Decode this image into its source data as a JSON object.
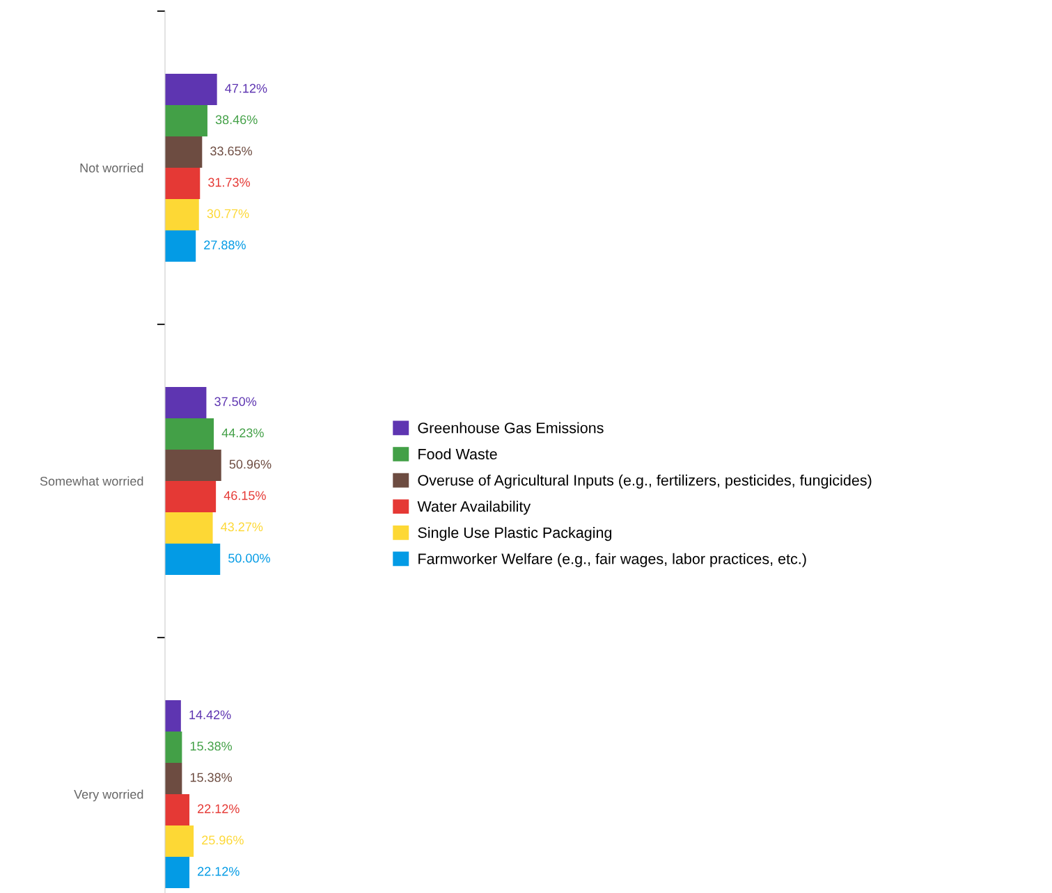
{
  "chart_data": {
    "type": "bar",
    "orientation": "horizontal",
    "categories": [
      "Not worried",
      "Somewhat worried",
      "Very worried"
    ],
    "tick_labels": "y",
    "legend": "right",
    "grid": false,
    "series": [
      {
        "name": "Greenhouse Gas Emissions",
        "color": "#5e35b1",
        "values": [
          47.12,
          37.5,
          14.42
        ],
        "value_labels": [
          "47.12%",
          "37.50%",
          "14.42%"
        ]
      },
      {
        "name": "Food Waste",
        "color": "#43a047",
        "values": [
          38.46,
          44.23,
          15.38
        ],
        "value_labels": [
          "38.46%",
          "44.23%",
          "15.38%"
        ]
      },
      {
        "name": "Overuse of Agricultural Inputs (e.g., fertilizers, pesticides, fungicides)",
        "color": "#6d4c41",
        "values": [
          33.65,
          50.96,
          15.38
        ],
        "value_labels": [
          "33.65%",
          "50.96%",
          "15.38%"
        ]
      },
      {
        "name": "Water Availability",
        "color": "#e53935",
        "values": [
          31.73,
          46.15,
          22.12
        ],
        "value_labels": [
          "31.73%",
          "46.15%",
          "22.12%"
        ]
      },
      {
        "name": "Single Use Plastic Packaging",
        "color": "#fdd835",
        "values": [
          30.77,
          43.27,
          25.96
        ],
        "value_labels": [
          "30.77%",
          "43.27%",
          "25.96%"
        ]
      },
      {
        "name": "Farmworker Welfare (e.g., fair wages, labor practices, etc.)",
        "color": "#039be5",
        "values": [
          27.88,
          50.0,
          22.12
        ],
        "value_labels": [
          "27.88%",
          "50.00%",
          "22.12%"
        ]
      }
    ]
  }
}
